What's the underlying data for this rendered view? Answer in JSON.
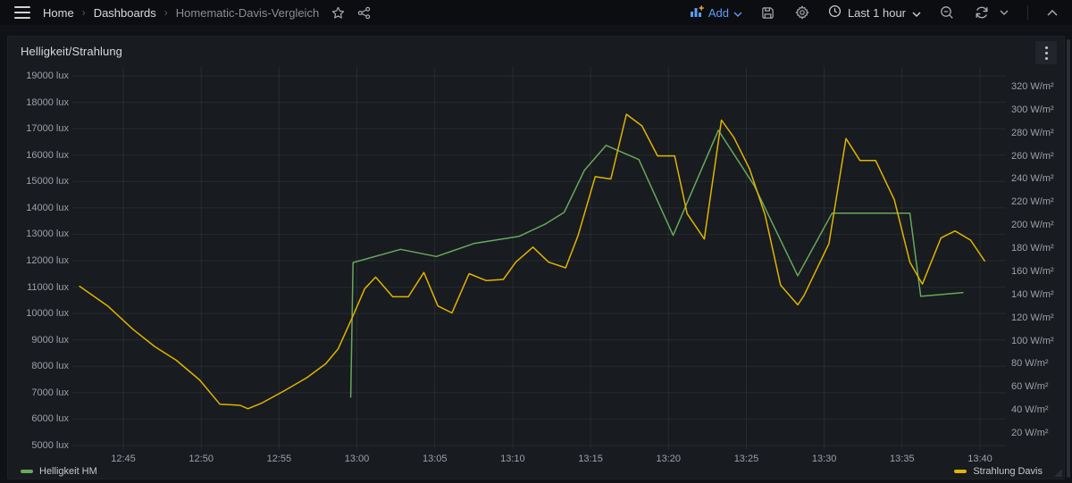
{
  "navbar": {
    "breadcrumb": {
      "home": "Home",
      "dashboards": "Dashboards",
      "current": "Homematic-Davis-Vergleich"
    },
    "add_label": "Add",
    "time_range_label": "Last 1 hour"
  },
  "panel": {
    "title": "Helligkeit/Strahlung"
  },
  "chart_data": {
    "type": "line",
    "title": "Helligkeit/Strahlung",
    "grid": true,
    "legend_position": "bottom",
    "x_axis": {
      "unit": "time",
      "tick_labels": [
        "12:45",
        "12:50",
        "12:55",
        "13:00",
        "13:05",
        "13:10",
        "13:15",
        "13:20",
        "13:25",
        "13:30",
        "13:35",
        "13:40"
      ],
      "tick_minutes": [
        45,
        50,
        55,
        60,
        65,
        70,
        75,
        80,
        85,
        90,
        95,
        100
      ]
    },
    "y_left": {
      "unit": "lux",
      "min": 5000,
      "max": 19000,
      "ticks": [
        19000,
        18000,
        17000,
        16000,
        15000,
        14000,
        13000,
        12000,
        11000,
        10000,
        9000,
        8000,
        7000,
        6000,
        5000
      ]
    },
    "y_right": {
      "unit": "W/m²",
      "min": 20,
      "max": 320,
      "ticks": [
        320,
        300,
        280,
        260,
        240,
        220,
        200,
        180,
        160,
        140,
        120,
        100,
        80,
        60,
        40,
        20
      ]
    },
    "series": [
      {
        "name": "Helligkeit HM",
        "axis": "left",
        "unit": "lux",
        "color": "#67a85c",
        "points": [
          [
            59.6,
            6830
          ],
          [
            59.75,
            11930
          ],
          [
            62.8,
            12430
          ],
          [
            65.1,
            12160
          ],
          [
            67.5,
            12650
          ],
          [
            70.4,
            12920
          ],
          [
            72.1,
            13390
          ],
          [
            73.3,
            13830
          ],
          [
            74.6,
            15420
          ],
          [
            76,
            16370
          ],
          [
            78.1,
            15830
          ],
          [
            80.3,
            12960
          ],
          [
            83.2,
            16940
          ],
          [
            85.5,
            14850
          ],
          [
            88.3,
            11430
          ],
          [
            90.5,
            13800
          ],
          [
            95.5,
            13800
          ],
          [
            96.2,
            10650
          ],
          [
            98.9,
            10790
          ]
        ]
      },
      {
        "name": "Strahlung Davis",
        "axis": "right",
        "unit": "W/m²",
        "color": "#e0b400",
        "points": [
          [
            42.2,
            147
          ],
          [
            44,
            130
          ],
          [
            45.6,
            110
          ],
          [
            47,
            95
          ],
          [
            48.4,
            83
          ],
          [
            49.9,
            66
          ],
          [
            51.2,
            45
          ],
          [
            52.5,
            44
          ],
          [
            53,
            41
          ],
          [
            53.9,
            46
          ],
          [
            55.4,
            57
          ],
          [
            56.8,
            68
          ],
          [
            58,
            80
          ],
          [
            58.8,
            93
          ],
          [
            59.7,
            120
          ],
          [
            60.5,
            145
          ],
          [
            61.2,
            155
          ],
          [
            62.3,
            138
          ],
          [
            63.3,
            138
          ],
          [
            64.3,
            159
          ],
          [
            65.2,
            130
          ],
          [
            66.1,
            124
          ],
          [
            67.2,
            158
          ],
          [
            68.3,
            152
          ],
          [
            69.4,
            153
          ],
          [
            70.2,
            168
          ],
          [
            71.3,
            181
          ],
          [
            72.3,
            168
          ],
          [
            73.4,
            163
          ],
          [
            74.2,
            191
          ],
          [
            75.3,
            242
          ],
          [
            76.3,
            240
          ],
          [
            77.3,
            296
          ],
          [
            78.3,
            286
          ],
          [
            79.3,
            260
          ],
          [
            80.4,
            260
          ],
          [
            81.2,
            210
          ],
          [
            82.3,
            188
          ],
          [
            83.4,
            291
          ],
          [
            84.2,
            276
          ],
          [
            85.2,
            249
          ],
          [
            86.2,
            209
          ],
          [
            87.2,
            148
          ],
          [
            88.3,
            131
          ],
          [
            88.7,
            139
          ],
          [
            90.3,
            184
          ],
          [
            91.4,
            275
          ],
          [
            92.3,
            256
          ],
          [
            93.3,
            256
          ],
          [
            94.5,
            222
          ],
          [
            95.5,
            168
          ],
          [
            96.3,
            149
          ],
          [
            97.5,
            189
          ],
          [
            98.4,
            195
          ],
          [
            99.4,
            187
          ],
          [
            100.3,
            169
          ]
        ]
      }
    ]
  }
}
